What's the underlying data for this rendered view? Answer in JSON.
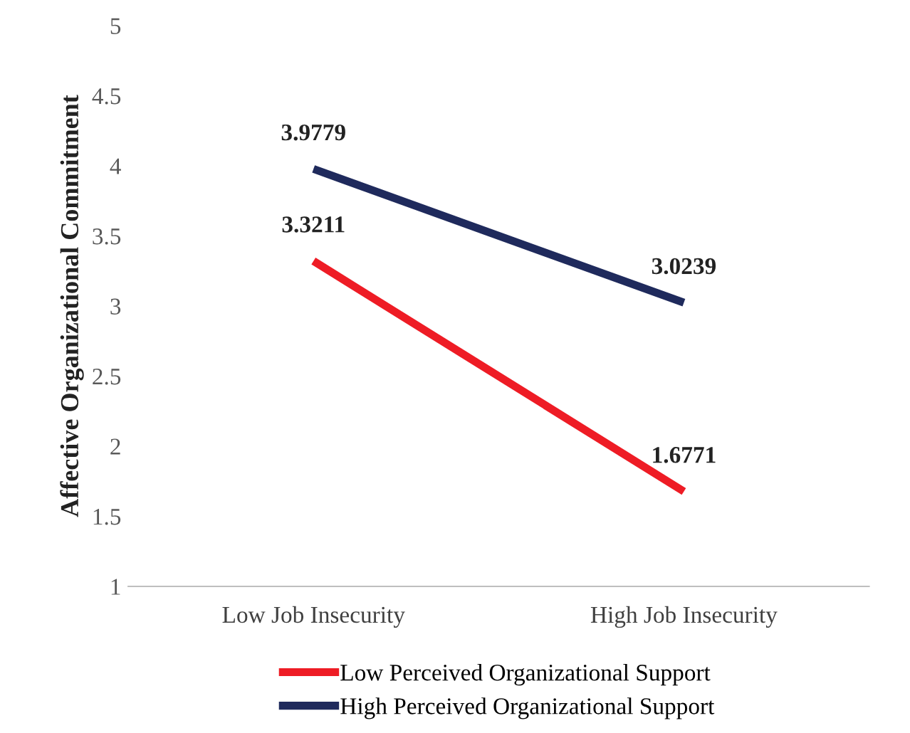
{
  "chart_data": {
    "type": "line",
    "ylabel": "Affective Organizational Commitment",
    "categories": [
      "Low Job Insecurity",
      "High Job Insecurity"
    ],
    "series": [
      {
        "name": "Low Perceived Organizational Support",
        "color": "#ee1c25",
        "values": [
          3.3211,
          1.6771
        ]
      },
      {
        "name": "High Perceived Organizational Support",
        "color": "#1f2a5c",
        "values": [
          3.9779,
          3.0239
        ]
      }
    ],
    "ylim": [
      1,
      5
    ],
    "yticks": [
      1,
      1.5,
      2,
      2.5,
      3,
      3.5,
      4,
      4.5,
      5
    ],
    "grid": false,
    "legend": "bottom",
    "marker": "none",
    "line_style": "solid",
    "data_labels": true
  }
}
